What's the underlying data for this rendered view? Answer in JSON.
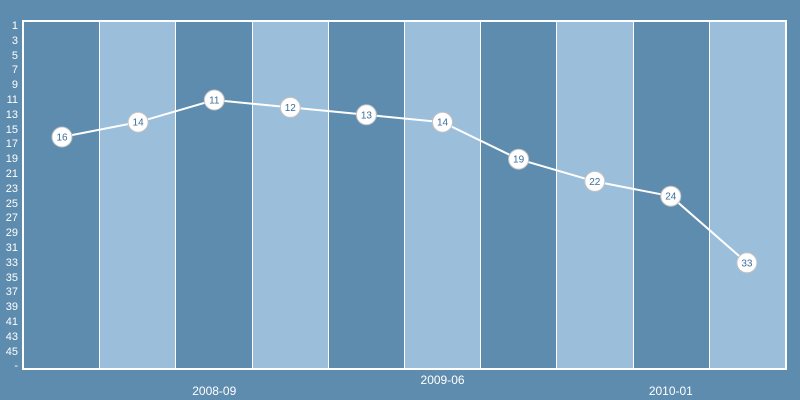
{
  "chart_data": {
    "type": "line",
    "title": "",
    "xlabel": "",
    "ylabel": "",
    "x_tick_labels": [
      {
        "label": "2008-09",
        "band_index": 2,
        "row": "low"
      },
      {
        "label": "2009-06",
        "band_index": 5,
        "row": "high"
      },
      {
        "label": "2010-01",
        "band_index": 8,
        "row": "low"
      }
    ],
    "y_tick_labels": [
      "1",
      "3",
      "5",
      "7",
      "9",
      "11",
      "13",
      "15",
      "17",
      "19",
      "21",
      "23",
      "25",
      "27",
      "29",
      "31",
      "33",
      "35",
      "37",
      "39",
      "41",
      "43",
      "45",
      "-"
    ],
    "y_axis": {
      "min": 1,
      "max": 47,
      "direction": "down",
      "grid": false
    },
    "values": [
      16,
      14,
      11,
      12,
      13,
      14,
      19,
      22,
      24,
      33
    ],
    "band_count": 10,
    "legend": "none",
    "colors": {
      "background": "#5E8CAE",
      "band_dark": "#5E8CAE",
      "band_light": "#9BBEDB",
      "plot_border": "#FFFFFF",
      "line": "#FFFFFF",
      "marker_fill": "#FFFFFF",
      "marker_border": "#C2C2C2",
      "marker_text": "#3C6E99",
      "axis_text": "#FFFFFF"
    }
  }
}
